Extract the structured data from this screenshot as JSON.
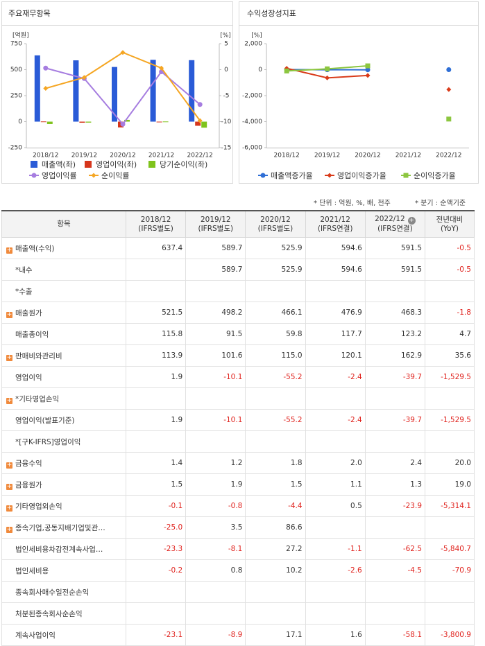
{
  "chart_data": [
    {
      "type": "bar",
      "title": "주요재무항목",
      "ylabel": "[억원]",
      "y2label": "[%]",
      "categories": [
        "2018/12",
        "2019/12",
        "2020/12",
        "2021/12",
        "2022/12"
      ],
      "ylim": [
        -250,
        750
      ],
      "yticks": [
        -250,
        0,
        250,
        500,
        750
      ],
      "y2lim": [
        -15,
        5
      ],
      "y2ticks": [
        -15,
        -10,
        -5,
        0,
        5
      ],
      "series": [
        {
          "name": "매출액(좌)",
          "type": "bar",
          "color": "#2a5bd7",
          "values": [
            637.4,
            589.7,
            525.9,
            594.6,
            591.5
          ]
        },
        {
          "name": "영업이익(좌)",
          "type": "bar",
          "color": "#d6361c",
          "values": [
            1.9,
            -10.1,
            -55.2,
            -2.4,
            -39.7
          ]
        },
        {
          "name": "당기순이익(좌)",
          "type": "bar",
          "color": "#7fc31c",
          "values": [
            -23.1,
            -8.9,
            17.1,
            1.6,
            -58.1
          ]
        },
        {
          "name": "영업이익률",
          "type": "line",
          "axis": "y2",
          "marker": "circle",
          "color": "#a67de0",
          "values": [
            0.3,
            -1.7,
            -10.5,
            -0.4,
            -6.7
          ]
        },
        {
          "name": "순이익률",
          "type": "line",
          "axis": "y2",
          "marker": "diamond",
          "color": "#f5a623",
          "values": [
            -3.6,
            -1.5,
            3.3,
            0.3,
            -9.8
          ]
        }
      ]
    },
    {
      "type": "line",
      "title": "수익성장성지표",
      "ylabel": "[%]",
      "categories": [
        "2018/12",
        "2019/12",
        "2020/12",
        "2021/12",
        "2022/12"
      ],
      "ylim": [
        -6000,
        2000
      ],
      "yticks": [
        {
          "value": -6000,
          "label": "-6,000"
        },
        {
          "value": -4000,
          "label": "-4,000"
        },
        {
          "value": -2000,
          "label": "-2,000"
        },
        0,
        {
          "value": 2000,
          "label": "2,000"
        }
      ],
      "series": [
        {
          "name": "매출액증가율",
          "type": "line",
          "marker": "circle",
          "color": "#2f6fd6",
          "values": [
            5,
            -7.5,
            -10.8,
            null,
            -0.5
          ]
        },
        {
          "name": "영업이익증가율",
          "type": "line",
          "marker": "diamond",
          "color": "#d93b1a",
          "values": [
            100,
            -631.6,
            -446.5,
            null,
            -1529.5
          ]
        },
        {
          "name": "순이익증가율",
          "type": "line",
          "marker": "square",
          "color": "#8cc63f",
          "values": [
            -100,
            61.5,
            292,
            null,
            -3800.9
          ]
        }
      ]
    }
  ],
  "notes": [
    "* 단위 : 억원, %, 배, 천주",
    "* 분기 : 순액기준"
  ],
  "table": {
    "item_header": "항목",
    "columns": [
      {
        "period": "2018/12",
        "basis": "(IFRS별도)"
      },
      {
        "period": "2019/12",
        "basis": "(IFRS별도)"
      },
      {
        "period": "2020/12",
        "basis": "(IFRS별도)"
      },
      {
        "period": "2021/12",
        "basis": "(IFRS연결)"
      },
      {
        "period": "2022/12",
        "basis": "(IFRS연결)",
        "expandable": true
      },
      {
        "period": "전년대비",
        "basis": "(YoY)"
      }
    ],
    "rows": [
      {
        "label": "매출액(수익)",
        "expandable": true,
        "values": [
          "637.4",
          "589.7",
          "525.9",
          "594.6",
          "591.5",
          "-0.5"
        ]
      },
      {
        "label": "*내수",
        "values": [
          null,
          "589.7",
          "525.9",
          "594.6",
          "591.5",
          "-0.5"
        ]
      },
      {
        "label": "*수출",
        "values": [
          null,
          null,
          null,
          null,
          null,
          null
        ]
      },
      {
        "label": "매출원가",
        "expandable": true,
        "values": [
          "521.5",
          "498.2",
          "466.1",
          "476.9",
          "468.3",
          "-1.8"
        ]
      },
      {
        "label": "매출총이익",
        "values": [
          "115.8",
          "91.5",
          "59.8",
          "117.7",
          "123.2",
          "4.7"
        ]
      },
      {
        "label": "판매비와관리비",
        "expandable": true,
        "values": [
          "113.9",
          "101.6",
          "115.0",
          "120.1",
          "162.9",
          "35.6"
        ]
      },
      {
        "label": "영업이익",
        "values": [
          "1.9",
          "-10.1",
          "-55.2",
          "-2.4",
          "-39.7",
          "-1,529.5"
        ]
      },
      {
        "label": "*기타영업손익",
        "expandable": true,
        "values": [
          null,
          null,
          null,
          null,
          null,
          null
        ]
      },
      {
        "label": "영업이익(발표기준)",
        "values": [
          "1.9",
          "-10.1",
          "-55.2",
          "-2.4",
          "-39.7",
          "-1,529.5"
        ]
      },
      {
        "label": "*[구K-IFRS]영업이익",
        "values": [
          null,
          null,
          null,
          null,
          null,
          null
        ]
      },
      {
        "label": "금융수익",
        "expandable": true,
        "values": [
          "1.4",
          "1.2",
          "1.8",
          "2.0",
          "2.4",
          "20.0"
        ]
      },
      {
        "label": "금융원가",
        "expandable": true,
        "values": [
          "1.5",
          "1.9",
          "1.5",
          "1.1",
          "1.3",
          "19.0"
        ]
      },
      {
        "label": "기타영업외손익",
        "expandable": true,
        "values": [
          "-0.1",
          "-0.8",
          "-4.4",
          "0.5",
          "-23.9",
          "-5,314.1"
        ]
      },
      {
        "label": "종속기업,공동지배기업및관…",
        "expandable": true,
        "values": [
          "-25.0",
          "3.5",
          "86.6",
          null,
          null,
          null
        ]
      },
      {
        "label": "법인세비용차감전계속사업…",
        "values": [
          "-23.3",
          "-8.1",
          "27.2",
          "-1.1",
          "-62.5",
          "-5,840.7"
        ]
      },
      {
        "label": "법인세비용",
        "values": [
          "-0.2",
          "0.8",
          "10.2",
          "-2.6",
          "-4.5",
          "-70.9"
        ]
      },
      {
        "label": "종속회사매수일전순손익",
        "values": [
          null,
          null,
          null,
          null,
          null,
          null
        ]
      },
      {
        "label": "처분된종속회사순손익",
        "values": [
          null,
          null,
          null,
          null,
          null,
          null
        ]
      },
      {
        "label": "계속사업이익",
        "values": [
          "-23.1",
          "-8.9",
          "17.1",
          "1.6",
          "-58.1",
          "-3,800.9"
        ]
      }
    ]
  }
}
